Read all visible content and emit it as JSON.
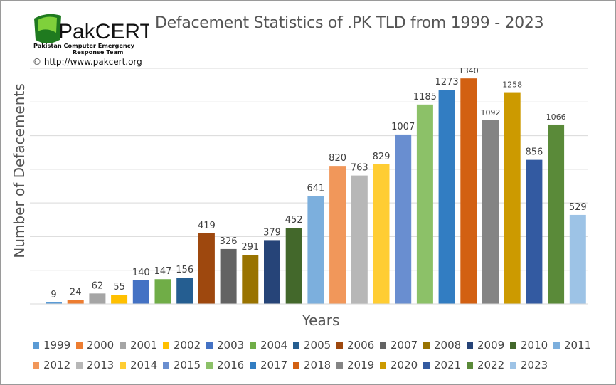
{
  "logo": {
    "brand": "PakCERT",
    "tagline_1": "Pakistan Computer Emergency",
    "tagline_2": "Response Team"
  },
  "copyright": "© http://www.pakcert.org",
  "chart_data": {
    "type": "bar",
    "title": "Defacement Statistics of .PK TLD from 1999 - 2023",
    "xlabel": "Years",
    "ylabel": "Number of Defacements",
    "ylim": [
      0,
      1400
    ],
    "grid": true,
    "legend_position": "bottom",
    "categories": [
      "1999",
      "2000",
      "2001",
      "2002",
      "2003",
      "2004",
      "2005",
      "2006",
      "2007",
      "2008",
      "2009",
      "2010",
      "2011",
      "2012",
      "2013",
      "2014",
      "2015",
      "2016",
      "2017",
      "2018",
      "2019",
      "2020",
      "2021",
      "2022",
      "2023"
    ],
    "values": [
      9,
      24,
      62,
      55,
      140,
      147,
      156,
      419,
      326,
      291,
      379,
      452,
      641,
      820,
      763,
      829,
      1007,
      1185,
      1273,
      1340,
      1092,
      1258,
      856,
      1066,
      529
    ],
    "colors": [
      "#5b9bd5",
      "#ed7d31",
      "#a5a5a5",
      "#ffc000",
      "#4472c4",
      "#70ad47",
      "#255e91",
      "#9e480e",
      "#636363",
      "#997300",
      "#264478",
      "#43682b",
      "#7cafdd",
      "#f1975a",
      "#b7b7b7",
      "#ffcd33",
      "#698ed0",
      "#8cc168",
      "#327dc2",
      "#d26012",
      "#848484",
      "#cc9a00",
      "#335aa1",
      "#5a8a39",
      "#9dc3e6"
    ]
  }
}
